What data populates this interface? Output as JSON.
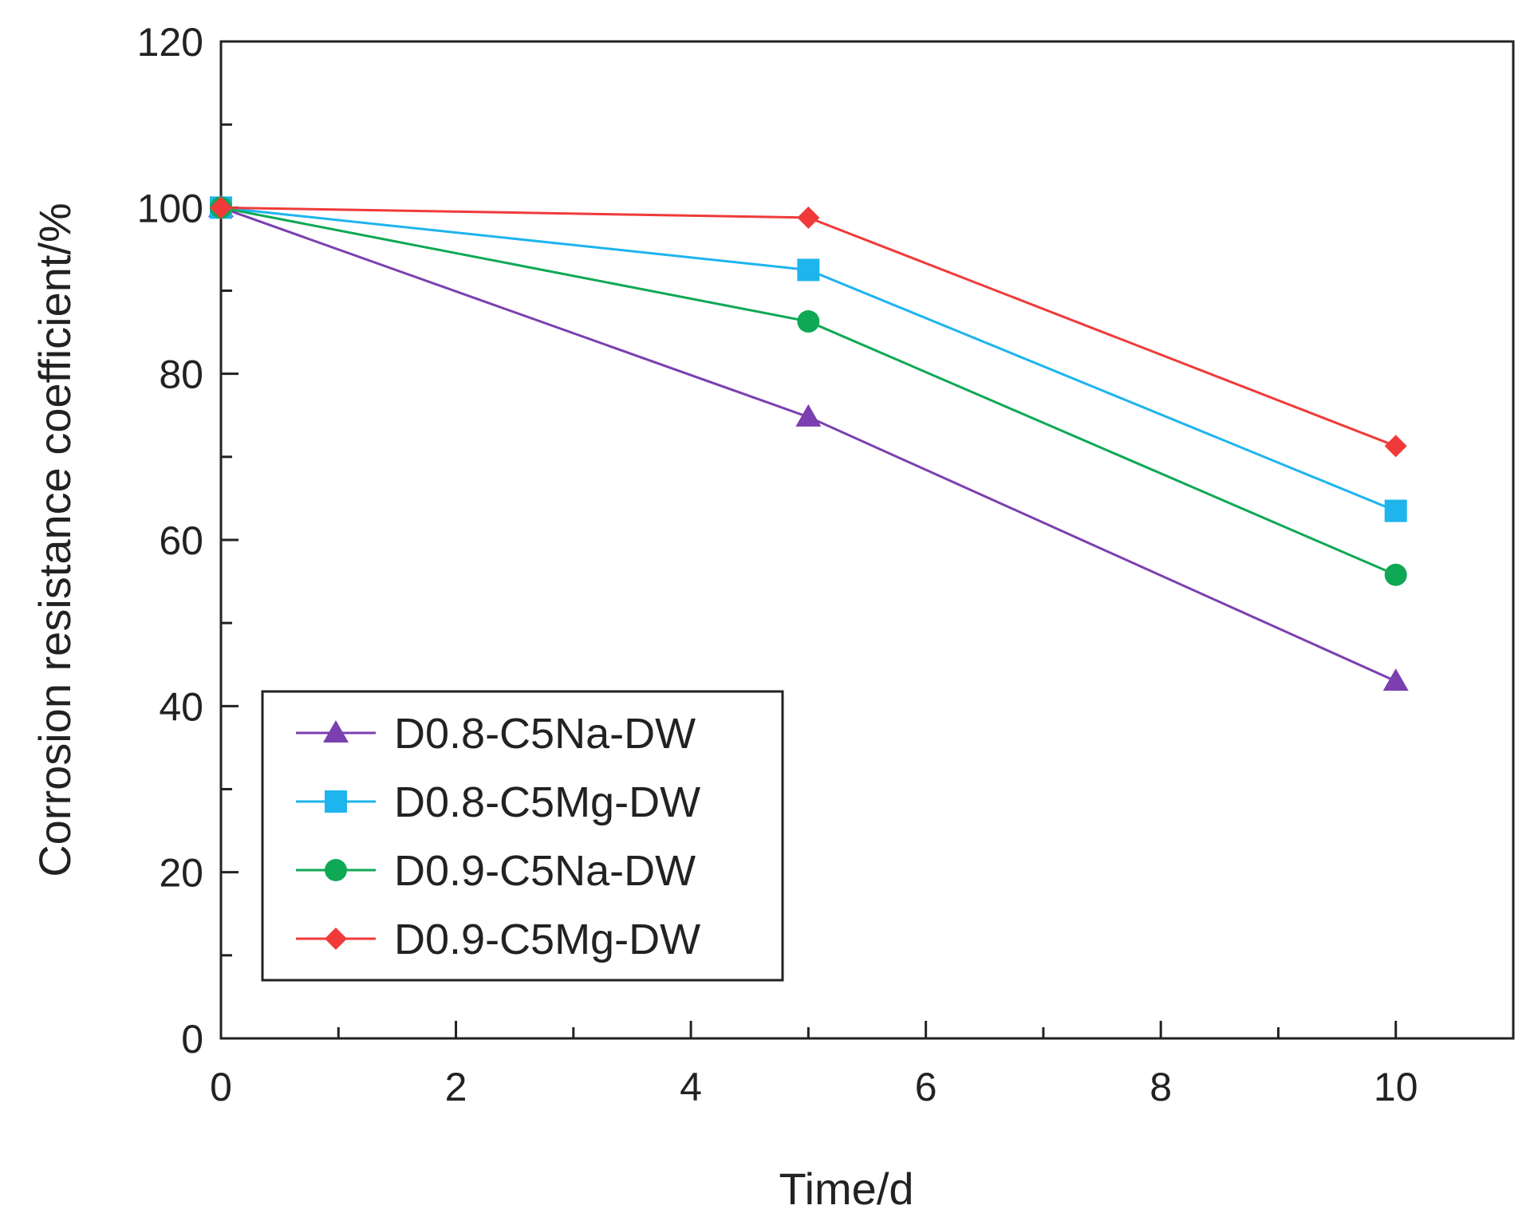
{
  "chart_data": {
    "type": "line",
    "title": "",
    "xlabel": "Time/d",
    "ylabel": "Corrosion resistance coefficient/%",
    "xlim": [
      0,
      11
    ],
    "ylim": [
      0,
      120
    ],
    "x_major_ticks": [
      0,
      2,
      4,
      6,
      8,
      10
    ],
    "x_minor_ticks": [
      1,
      3,
      5,
      7,
      9,
      11
    ],
    "y_major_ticks": [
      0,
      20,
      40,
      60,
      80,
      100,
      120
    ],
    "y_minor_ticks": [
      10,
      30,
      50,
      70,
      90,
      110
    ],
    "x_tick_labels": [
      "0",
      "2",
      "4",
      "6",
      "8",
      "10"
    ],
    "y_tick_labels": [
      "0",
      "20",
      "40",
      "60",
      "80",
      "100",
      "120"
    ],
    "grid": false,
    "legend_position": "bottom-left",
    "x": [
      0,
      5,
      10
    ],
    "series": [
      {
        "name": "D0.8-C5Na-DW",
        "values": [
          100,
          74.8,
          43.0
        ],
        "color": "#7B3FB0",
        "marker": "triangle"
      },
      {
        "name": "D0.8-C5Mg-DW",
        "values": [
          100,
          92.5,
          63.5
        ],
        "color": "#1EB4EE",
        "marker": "square"
      },
      {
        "name": "D0.9-C5Na-DW",
        "values": [
          100,
          86.3,
          55.8
        ],
        "color": "#0FA855",
        "marker": "circle"
      },
      {
        "name": "D0.9-C5Mg-DW",
        "values": [
          100,
          98.8,
          71.3
        ],
        "color": "#F03A3A",
        "marker": "diamond"
      }
    ]
  }
}
